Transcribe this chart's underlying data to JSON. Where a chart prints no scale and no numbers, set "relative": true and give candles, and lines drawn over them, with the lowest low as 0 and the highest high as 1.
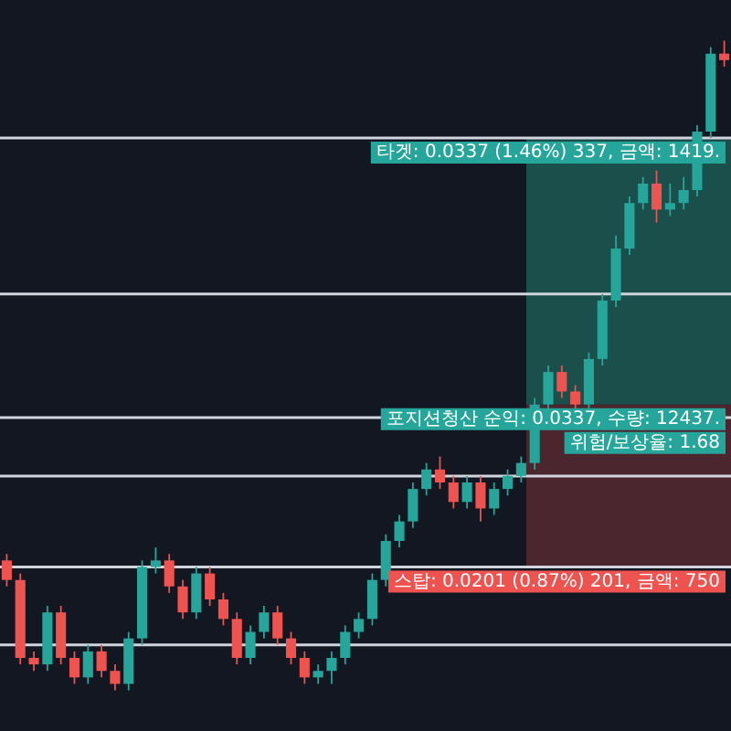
{
  "chart_data": {
    "type": "candlestick",
    "relative": true,
    "categories": [
      null,
      null,
      null,
      null,
      null,
      null,
      null,
      null,
      null,
      null,
      null,
      null,
      null,
      null,
      null,
      null,
      null,
      null,
      null,
      null,
      null,
      null,
      null,
      null,
      null,
      null,
      null,
      null,
      null,
      null,
      null,
      null,
      null,
      null,
      null,
      null,
      null,
      null,
      null,
      null,
      null,
      null,
      null,
      null,
      null,
      null,
      null,
      null,
      null,
      null,
      null,
      null,
      null,
      null
    ],
    "ohlc": [
      [
        0.2,
        0.21,
        0.16,
        0.17
      ],
      [
        0.17,
        0.18,
        0.04,
        0.05
      ],
      [
        0.05,
        0.06,
        0.03,
        0.04
      ],
      [
        0.04,
        0.13,
        0.03,
        0.12
      ],
      [
        0.12,
        0.13,
        0.04,
        0.05
      ],
      [
        0.05,
        0.06,
        0.01,
        0.02
      ],
      [
        0.02,
        0.07,
        0.01,
        0.06
      ],
      [
        0.06,
        0.07,
        0.02,
        0.03
      ],
      [
        0.03,
        0.04,
        0.0,
        0.01
      ],
      [
        0.01,
        0.09,
        0.0,
        0.08
      ],
      [
        0.08,
        0.2,
        0.07,
        0.19
      ],
      [
        0.19,
        0.22,
        0.18,
        0.2
      ],
      [
        0.2,
        0.21,
        0.15,
        0.16
      ],
      [
        0.16,
        0.17,
        0.11,
        0.12
      ],
      [
        0.12,
        0.19,
        0.11,
        0.18
      ],
      [
        0.18,
        0.19,
        0.13,
        0.14
      ],
      [
        0.14,
        0.15,
        0.1,
        0.11
      ],
      [
        0.11,
        0.12,
        0.04,
        0.05
      ],
      [
        0.05,
        0.1,
        0.04,
        0.09
      ],
      [
        0.09,
        0.13,
        0.08,
        0.12
      ],
      [
        0.12,
        0.13,
        0.07,
        0.08
      ],
      [
        0.08,
        0.09,
        0.04,
        0.05
      ],
      [
        0.05,
        0.06,
        0.01,
        0.02
      ],
      [
        0.02,
        0.04,
        0.01,
        0.03
      ],
      [
        0.03,
        0.06,
        0.01,
        0.05
      ],
      [
        0.05,
        0.1,
        0.04,
        0.09
      ],
      [
        0.09,
        0.12,
        0.08,
        0.11
      ],
      [
        0.11,
        0.18,
        0.1,
        0.17
      ],
      [
        0.17,
        0.24,
        0.16,
        0.23
      ],
      [
        0.23,
        0.27,
        0.22,
        0.26
      ],
      [
        0.26,
        0.32,
        0.25,
        0.31
      ],
      [
        0.31,
        0.35,
        0.3,
        0.34
      ],
      [
        0.34,
        0.36,
        0.31,
        0.32
      ],
      [
        0.32,
        0.33,
        0.28,
        0.29
      ],
      [
        0.29,
        0.33,
        0.28,
        0.32
      ],
      [
        0.32,
        0.33,
        0.26,
        0.28
      ],
      [
        0.28,
        0.32,
        0.27,
        0.31
      ],
      [
        0.31,
        0.34,
        0.3,
        0.33
      ],
      [
        0.33,
        0.36,
        0.32,
        0.35
      ],
      [
        0.35,
        0.45,
        0.34,
        0.44
      ],
      [
        0.44,
        0.5,
        0.43,
        0.49
      ],
      [
        0.49,
        0.5,
        0.45,
        0.46
      ],
      [
        0.46,
        0.47,
        0.43,
        0.44
      ],
      [
        0.44,
        0.52,
        0.43,
        0.51
      ],
      [
        0.51,
        0.61,
        0.5,
        0.6
      ],
      [
        0.6,
        0.7,
        0.59,
        0.68
      ],
      [
        0.68,
        0.76,
        0.67,
        0.75
      ],
      [
        0.75,
        0.79,
        0.74,
        0.78
      ],
      [
        0.78,
        0.8,
        0.72,
        0.74
      ],
      [
        0.74,
        0.78,
        0.73,
        0.75
      ],
      [
        0.75,
        0.79,
        0.74,
        0.77
      ],
      [
        0.77,
        0.87,
        0.76,
        0.86
      ],
      [
        0.86,
        0.99,
        0.85,
        0.98
      ],
      [
        0.98,
        1.0,
        0.96,
        0.97
      ]
    ],
    "colors": [
      "#ef5350",
      "#ef5350",
      "#ef5350",
      "#26a69a",
      "#ef5350",
      "#ef5350",
      "#26a69a",
      "#ef5350",
      "#ef5350",
      "#26a69a",
      "#26a69a",
      "#26a69a",
      "#ef5350",
      "#ef5350",
      "#26a69a",
      "#ef5350",
      "#ef5350",
      "#ef5350",
      "#26a69a",
      "#26a69a",
      "#ef5350",
      "#ef5350",
      "#ef5350",
      "#26a69a",
      "#26a69a",
      "#26a69a",
      "#26a69a",
      "#26a69a",
      "#26a69a",
      "#26a69a",
      "#26a69a",
      "#26a69a",
      "#ef5350",
      "#ef5350",
      "#26a69a",
      "#ef5350",
      "#26a69a",
      "#26a69a",
      "#26a69a",
      "#26a69a",
      "#26a69a",
      "#ef5350",
      "#ef5350",
      "#26a69a",
      "#26a69a",
      "#26a69a",
      "#26a69a",
      "#26a69a",
      "#ef5350",
      "#26a69a",
      "#26a69a",
      "#26a69a",
      "#26a69a",
      "#ef5350"
    ],
    "ref_lines": [
      {
        "axis": "y",
        "value": 0.85,
        "color": "#d1d4dc"
      },
      {
        "axis": "y",
        "value": 0.61,
        "color": "#d1d4dc"
      },
      {
        "axis": "y",
        "value": 0.42,
        "color": "#d1d4dc"
      },
      {
        "axis": "y",
        "value": 0.33,
        "color": "#d1d4dc"
      },
      {
        "axis": "y",
        "value": 0.19,
        "color": "#d1d4dc"
      },
      {
        "axis": "y",
        "value": 0.07,
        "color": "#d1d4dc"
      }
    ],
    "bands": [
      {
        "axis": "y",
        "from": 0.44,
        "to": 0.85,
        "color": "#1d5e56"
      },
      {
        "axis": "y",
        "from": 0.19,
        "to": 0.44,
        "color": "#5a2a32"
      }
    ],
    "annotations": [
      {
        "text": "타겟: 0.0337 (1.46%) 337, 금액: 1419.",
        "y": 0.85
      },
      {
        "text": "포지션청산 순익: 0.0337, 수량: 12437.",
        "y": 0.44
      },
      {
        "text": "위험/보상율: 1.68",
        "y": 0.44
      },
      {
        "text": "스탑: 0.0201 (0.87%) 201, 금액: 750",
        "y": 0.19
      }
    ],
    "legend": false
  }
}
